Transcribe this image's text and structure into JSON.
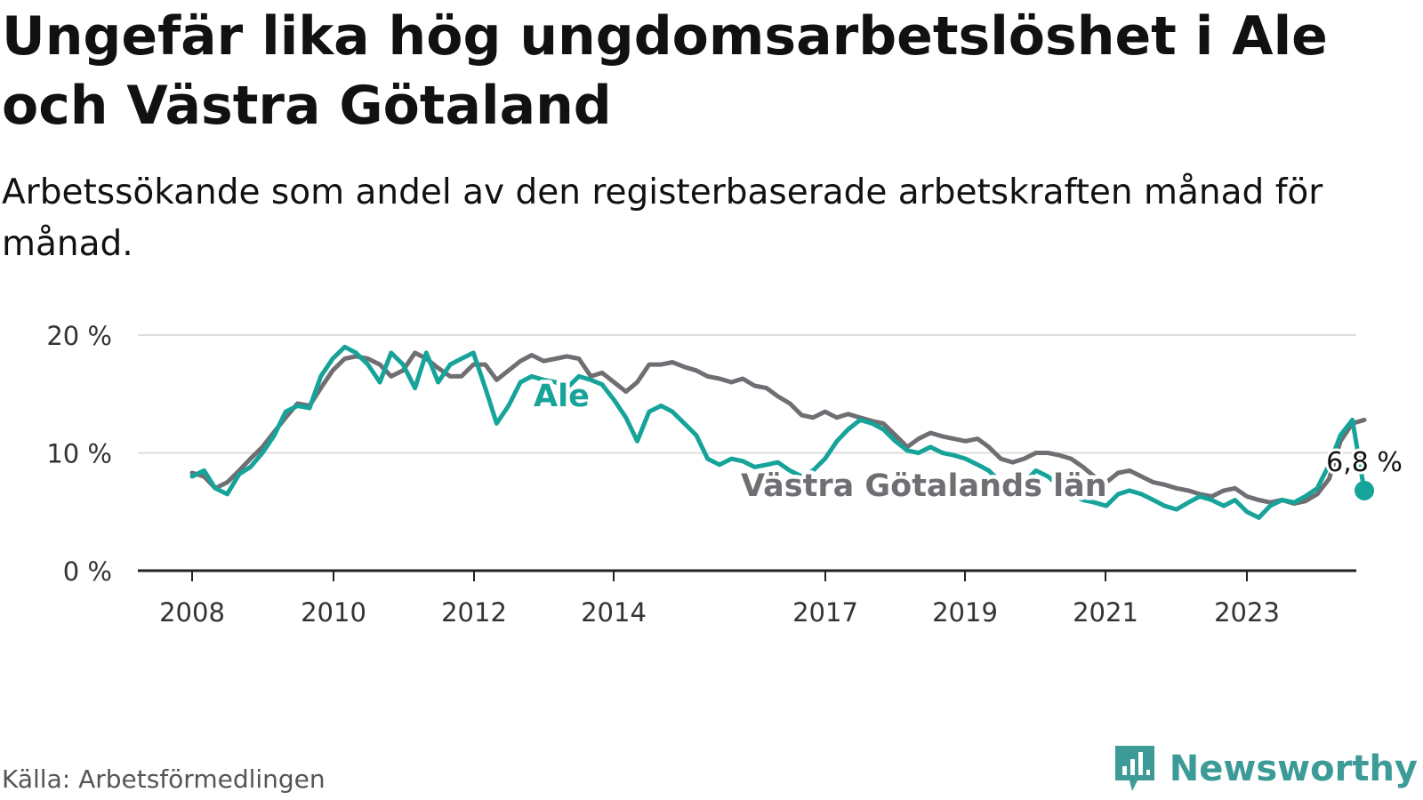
{
  "header": {
    "title": "Ungefär lika hög ungdomsarbetslöshet i Ale och Västra Götaland",
    "subtitle": "Arbetssökande som andel av den registerbaserade arbetskraften månad för månad."
  },
  "footer": {
    "source": "Källa: Arbetsförmedlingen",
    "brand": "Newsworthy"
  },
  "colors": {
    "ale": "#15a39a",
    "vg": "#6f6e73",
    "grid": "#dddddd",
    "axis": "#222222",
    "brand": "#3c9b97"
  },
  "icons": {
    "brand_logo": "bar-chart-speech-bubble-icon"
  },
  "chart_data": {
    "type": "line",
    "title": "Ungefär lika hög ungdomsarbetslöshet i Ale och Västra Götaland",
    "subtitle": "Arbetssökande som andel av den registerbaserade arbetskraften månad för månad.",
    "xlabel": "",
    "ylabel": "",
    "xlim": [
      2008.0,
      2024.67
    ],
    "ylim": [
      0,
      20
    ],
    "y_ticks": [
      0,
      10,
      20
    ],
    "y_tick_labels": [
      "0 %",
      "10 %",
      "20 %"
    ],
    "x_ticks": [
      2008,
      2010,
      2012,
      2014,
      2017,
      2019,
      2021,
      2023
    ],
    "x_tick_labels": [
      "2008",
      "2010",
      "2012",
      "2014",
      "2017",
      "2019",
      "2021",
      "2023"
    ],
    "grid": true,
    "legend": "inline labels",
    "end_label": "6,8 %",
    "end_value": 6.8,
    "series": [
      {
        "name": "Västra Götalands län",
        "label": "Västra Götalands län",
        "points": [
          [
            2008.0,
            8.3
          ],
          [
            2008.17,
            8.0
          ],
          [
            2008.33,
            7.0
          ],
          [
            2008.5,
            7.5
          ],
          [
            2008.67,
            8.5
          ],
          [
            2008.83,
            9.5
          ],
          [
            2009.0,
            10.5
          ],
          [
            2009.17,
            11.8
          ],
          [
            2009.33,
            13.0
          ],
          [
            2009.5,
            14.2
          ],
          [
            2009.67,
            14.0
          ],
          [
            2009.83,
            15.5
          ],
          [
            2010.0,
            17.0
          ],
          [
            2010.17,
            18.0
          ],
          [
            2010.33,
            18.2
          ],
          [
            2010.5,
            18.0
          ],
          [
            2010.67,
            17.5
          ],
          [
            2010.83,
            16.5
          ],
          [
            2011.0,
            17.0
          ],
          [
            2011.17,
            18.5
          ],
          [
            2011.33,
            18.0
          ],
          [
            2011.5,
            17.2
          ],
          [
            2011.67,
            16.5
          ],
          [
            2011.83,
            16.5
          ],
          [
            2012.0,
            17.5
          ],
          [
            2012.17,
            17.5
          ],
          [
            2012.33,
            16.2
          ],
          [
            2012.5,
            17.0
          ],
          [
            2012.67,
            17.8
          ],
          [
            2012.83,
            18.3
          ],
          [
            2013.0,
            17.8
          ],
          [
            2013.17,
            18.0
          ],
          [
            2013.33,
            18.2
          ],
          [
            2013.5,
            18.0
          ],
          [
            2013.67,
            16.5
          ],
          [
            2013.83,
            16.8
          ],
          [
            2014.0,
            16.0
          ],
          [
            2014.17,
            15.2
          ],
          [
            2014.33,
            16.0
          ],
          [
            2014.5,
            17.5
          ],
          [
            2014.67,
            17.5
          ],
          [
            2014.83,
            17.7
          ],
          [
            2015.0,
            17.3
          ],
          [
            2015.17,
            17.0
          ],
          [
            2015.33,
            16.5
          ],
          [
            2015.5,
            16.3
          ],
          [
            2015.67,
            16.0
          ],
          [
            2015.83,
            16.3
          ],
          [
            2016.0,
            15.7
          ],
          [
            2016.17,
            15.5
          ],
          [
            2016.33,
            14.8
          ],
          [
            2016.5,
            14.2
          ],
          [
            2016.67,
            13.2
          ],
          [
            2016.83,
            13.0
          ],
          [
            2017.0,
            13.5
          ],
          [
            2017.17,
            13.0
          ],
          [
            2017.33,
            13.3
          ],
          [
            2017.5,
            13.0
          ],
          [
            2017.67,
            12.7
          ],
          [
            2017.83,
            12.5
          ],
          [
            2018.0,
            11.5
          ],
          [
            2018.17,
            10.5
          ],
          [
            2018.33,
            11.2
          ],
          [
            2018.5,
            11.7
          ],
          [
            2018.67,
            11.4
          ],
          [
            2018.83,
            11.2
          ],
          [
            2019.0,
            11.0
          ],
          [
            2019.17,
            11.2
          ],
          [
            2019.33,
            10.5
          ],
          [
            2019.5,
            9.5
          ],
          [
            2019.67,
            9.2
          ],
          [
            2019.83,
            9.5
          ],
          [
            2020.0,
            10.0
          ],
          [
            2020.17,
            10.0
          ],
          [
            2020.33,
            9.8
          ],
          [
            2020.5,
            9.5
          ],
          [
            2020.67,
            8.8
          ],
          [
            2020.83,
            8.0
          ],
          [
            2021.0,
            7.5
          ],
          [
            2021.17,
            8.3
          ],
          [
            2021.33,
            8.5
          ],
          [
            2021.5,
            8.0
          ],
          [
            2021.67,
            7.5
          ],
          [
            2021.83,
            7.3
          ],
          [
            2022.0,
            7.0
          ],
          [
            2022.17,
            6.8
          ],
          [
            2022.33,
            6.5
          ],
          [
            2022.5,
            6.3
          ],
          [
            2022.67,
            6.8
          ],
          [
            2022.83,
            7.0
          ],
          [
            2023.0,
            6.3
          ],
          [
            2023.17,
            6.0
          ],
          [
            2023.33,
            5.8
          ],
          [
            2023.5,
            6.0
          ],
          [
            2023.67,
            5.7
          ],
          [
            2023.83,
            5.9
          ],
          [
            2024.0,
            6.5
          ],
          [
            2024.17,
            7.8
          ],
          [
            2024.33,
            11.0
          ],
          [
            2024.5,
            12.5
          ],
          [
            2024.67,
            12.8
          ]
        ]
      },
      {
        "name": "Ale",
        "label": "Ale",
        "points": [
          [
            2008.0,
            8.0
          ],
          [
            2008.17,
            8.5
          ],
          [
            2008.33,
            7.0
          ],
          [
            2008.5,
            6.5
          ],
          [
            2008.67,
            8.2
          ],
          [
            2008.83,
            8.8
          ],
          [
            2009.0,
            10.0
          ],
          [
            2009.17,
            11.5
          ],
          [
            2009.33,
            13.5
          ],
          [
            2009.5,
            14.0
          ],
          [
            2009.67,
            13.8
          ],
          [
            2009.83,
            16.5
          ],
          [
            2010.0,
            18.0
          ],
          [
            2010.17,
            19.0
          ],
          [
            2010.33,
            18.5
          ],
          [
            2010.5,
            17.5
          ],
          [
            2010.67,
            16.0
          ],
          [
            2010.83,
            18.5
          ],
          [
            2011.0,
            17.5
          ],
          [
            2011.17,
            15.5
          ],
          [
            2011.33,
            18.5
          ],
          [
            2011.5,
            16.0
          ],
          [
            2011.67,
            17.5
          ],
          [
            2011.83,
            18.0
          ],
          [
            2012.0,
            18.5
          ],
          [
            2012.17,
            15.5
          ],
          [
            2012.33,
            12.5
          ],
          [
            2012.5,
            14.0
          ],
          [
            2012.67,
            16.0
          ],
          [
            2012.83,
            16.5
          ],
          [
            2013.0,
            16.2
          ],
          [
            2013.17,
            16.0
          ],
          [
            2013.33,
            15.5
          ],
          [
            2013.5,
            16.5
          ],
          [
            2013.67,
            16.2
          ],
          [
            2013.83,
            15.8
          ],
          [
            2014.0,
            14.5
          ],
          [
            2014.17,
            13.0
          ],
          [
            2014.33,
            11.0
          ],
          [
            2014.5,
            13.5
          ],
          [
            2014.67,
            14.0
          ],
          [
            2014.83,
            13.5
          ],
          [
            2015.0,
            12.5
          ],
          [
            2015.17,
            11.5
          ],
          [
            2015.33,
            9.5
          ],
          [
            2015.5,
            9.0
          ],
          [
            2015.67,
            9.5
          ],
          [
            2015.83,
            9.3
          ],
          [
            2016.0,
            8.8
          ],
          [
            2016.17,
            9.0
          ],
          [
            2016.33,
            9.2
          ],
          [
            2016.5,
            8.5
          ],
          [
            2016.67,
            8.0
          ],
          [
            2016.83,
            8.5
          ],
          [
            2017.0,
            9.5
          ],
          [
            2017.17,
            11.0
          ],
          [
            2017.33,
            12.0
          ],
          [
            2017.5,
            12.8
          ],
          [
            2017.67,
            12.5
          ],
          [
            2017.83,
            12.0
          ],
          [
            2018.0,
            11.0
          ],
          [
            2018.17,
            10.2
          ],
          [
            2018.33,
            10.0
          ],
          [
            2018.5,
            10.5
          ],
          [
            2018.67,
            10.0
          ],
          [
            2018.83,
            9.8
          ],
          [
            2019.0,
            9.5
          ],
          [
            2019.17,
            9.0
          ],
          [
            2019.33,
            8.5
          ],
          [
            2019.5,
            7.5
          ],
          [
            2019.67,
            7.0
          ],
          [
            2019.83,
            7.5
          ],
          [
            2020.0,
            8.5
          ],
          [
            2020.17,
            8.0
          ],
          [
            2020.33,
            7.2
          ],
          [
            2020.5,
            6.5
          ],
          [
            2020.67,
            6.0
          ],
          [
            2020.83,
            5.8
          ],
          [
            2021.0,
            5.5
          ],
          [
            2021.17,
            6.5
          ],
          [
            2021.33,
            6.8
          ],
          [
            2021.5,
            6.5
          ],
          [
            2021.67,
            6.0
          ],
          [
            2021.83,
            5.5
          ],
          [
            2022.0,
            5.2
          ],
          [
            2022.17,
            5.8
          ],
          [
            2022.33,
            6.3
          ],
          [
            2022.5,
            6.0
          ],
          [
            2022.67,
            5.5
          ],
          [
            2022.83,
            6.0
          ],
          [
            2023.0,
            5.0
          ],
          [
            2023.17,
            4.5
          ],
          [
            2023.33,
            5.5
          ],
          [
            2023.5,
            6.0
          ],
          [
            2023.67,
            5.8
          ],
          [
            2023.83,
            6.3
          ],
          [
            2024.0,
            7.0
          ],
          [
            2024.17,
            9.0
          ],
          [
            2024.33,
            11.5
          ],
          [
            2024.5,
            12.8
          ],
          [
            2024.67,
            6.8
          ]
        ]
      }
    ]
  }
}
